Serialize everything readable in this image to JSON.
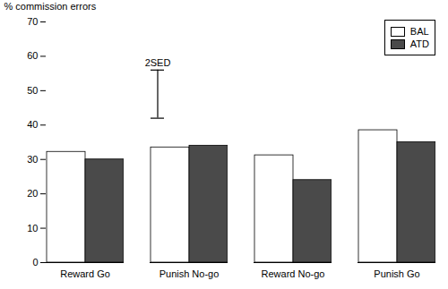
{
  "chart_data": {
    "type": "bar",
    "categories": [
      "Reward Go",
      "Punish No-go",
      "Reward No-go",
      "Punish Go"
    ],
    "series": [
      {
        "name": "BAL",
        "color": "#FFFFFF",
        "values": [
          32.2,
          33.5,
          31.2,
          38.5
        ]
      },
      {
        "name": "ATD",
        "color": "#4a4a4a",
        "values": [
          30.0,
          34.0,
          24.0,
          35.0
        ]
      }
    ],
    "ylabel": "% commission errors",
    "ylim": [
      0,
      70
    ],
    "yticks": [
      0,
      10,
      20,
      30,
      40,
      50,
      60,
      70
    ],
    "legend": "upper right",
    "error_bar": {
      "category": "Punish No-go",
      "low": 42.0,
      "high": 56.0,
      "label": "2SED"
    }
  }
}
